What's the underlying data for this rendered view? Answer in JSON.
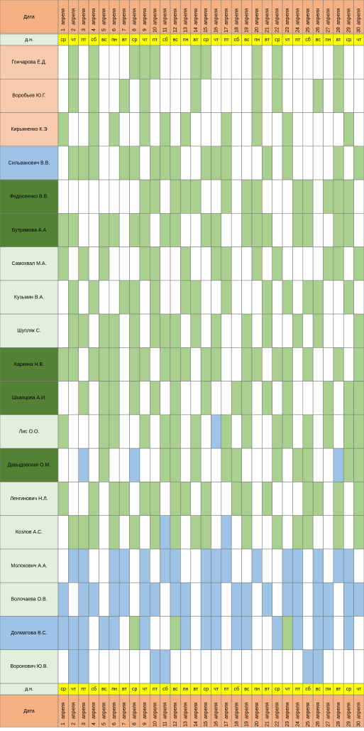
{
  "header": {
    "date_label": "Дата",
    "weekday_label": "д.н."
  },
  "days": [
    {
      "num": "1",
      "month": "апреля",
      "wd": "ср"
    },
    {
      "num": "2",
      "month": "апреля",
      "wd": "чт"
    },
    {
      "num": "3",
      "month": "апреля",
      "wd": "пт"
    },
    {
      "num": "4",
      "month": "апреля",
      "wd": "сб"
    },
    {
      "num": "5",
      "month": "апреля",
      "wd": "вс"
    },
    {
      "num": "6",
      "month": "апреля",
      "wd": "пн"
    },
    {
      "num": "7",
      "month": "апреля",
      "wd": "вт"
    },
    {
      "num": "8",
      "month": "апреля",
      "wd": "ср"
    },
    {
      "num": "9",
      "month": "апреля",
      "wd": "чт"
    },
    {
      "num": "10",
      "month": "апреля",
      "wd": "пт"
    },
    {
      "num": "11",
      "month": "апреля",
      "wd": "сб"
    },
    {
      "num": "12",
      "month": "апреля",
      "wd": "вс"
    },
    {
      "num": "13",
      "month": "апреля",
      "wd": "пн"
    },
    {
      "num": "14",
      "month": "апреля",
      "wd": "вт"
    },
    {
      "num": "15",
      "month": "апреля",
      "wd": "ср"
    },
    {
      "num": "16",
      "month": "апреля",
      "wd": "чт"
    },
    {
      "num": "17",
      "month": "апреля",
      "wd": "пт"
    },
    {
      "num": "18",
      "month": "апреля",
      "wd": "сб"
    },
    {
      "num": "19",
      "month": "апреля",
      "wd": "вс"
    },
    {
      "num": "20",
      "month": "апреля",
      "wd": "пн"
    },
    {
      "num": "21",
      "month": "апреля",
      "wd": "вт"
    },
    {
      "num": "22",
      "month": "апреля",
      "wd": "ср"
    },
    {
      "num": "23",
      "month": "апреля",
      "wd": "чт"
    },
    {
      "num": "24",
      "month": "апреля",
      "wd": "пт"
    },
    {
      "num": "25",
      "month": "апреля",
      "wd": "сб"
    },
    {
      "num": "26",
      "month": "апреля",
      "wd": "вс"
    },
    {
      "num": "27",
      "month": "апреля",
      "wd": "пн"
    },
    {
      "num": "28",
      "month": "апреля",
      "wd": "вт"
    },
    {
      "num": "29",
      "month": "апреля",
      "wd": "ср"
    },
    {
      "num": "30",
      "month": "апреля",
      "wd": "чт"
    }
  ],
  "names": [
    "Гончарова Е.Д.",
    "Воробьев Ю.Г.",
    "Кирьяненко К.Э",
    "Сильванович В.В.",
    "Федосеенко В.В.",
    "Бутримова А.А",
    "Самохвал М.А.",
    "Кузьмин В.А.",
    "Шупляк С.",
    "Каркина Н.В.",
    "Шкапцова А.И.",
    "Лис О.О.",
    "Давыдовская О.М.",
    "Ленгинович Н.Л.",
    "Козлов А.С.",
    "Молокович А.А.",
    "Волочаева О.В.",
    "Долматова В.С.",
    "Воронович Ю.В."
  ]
}
